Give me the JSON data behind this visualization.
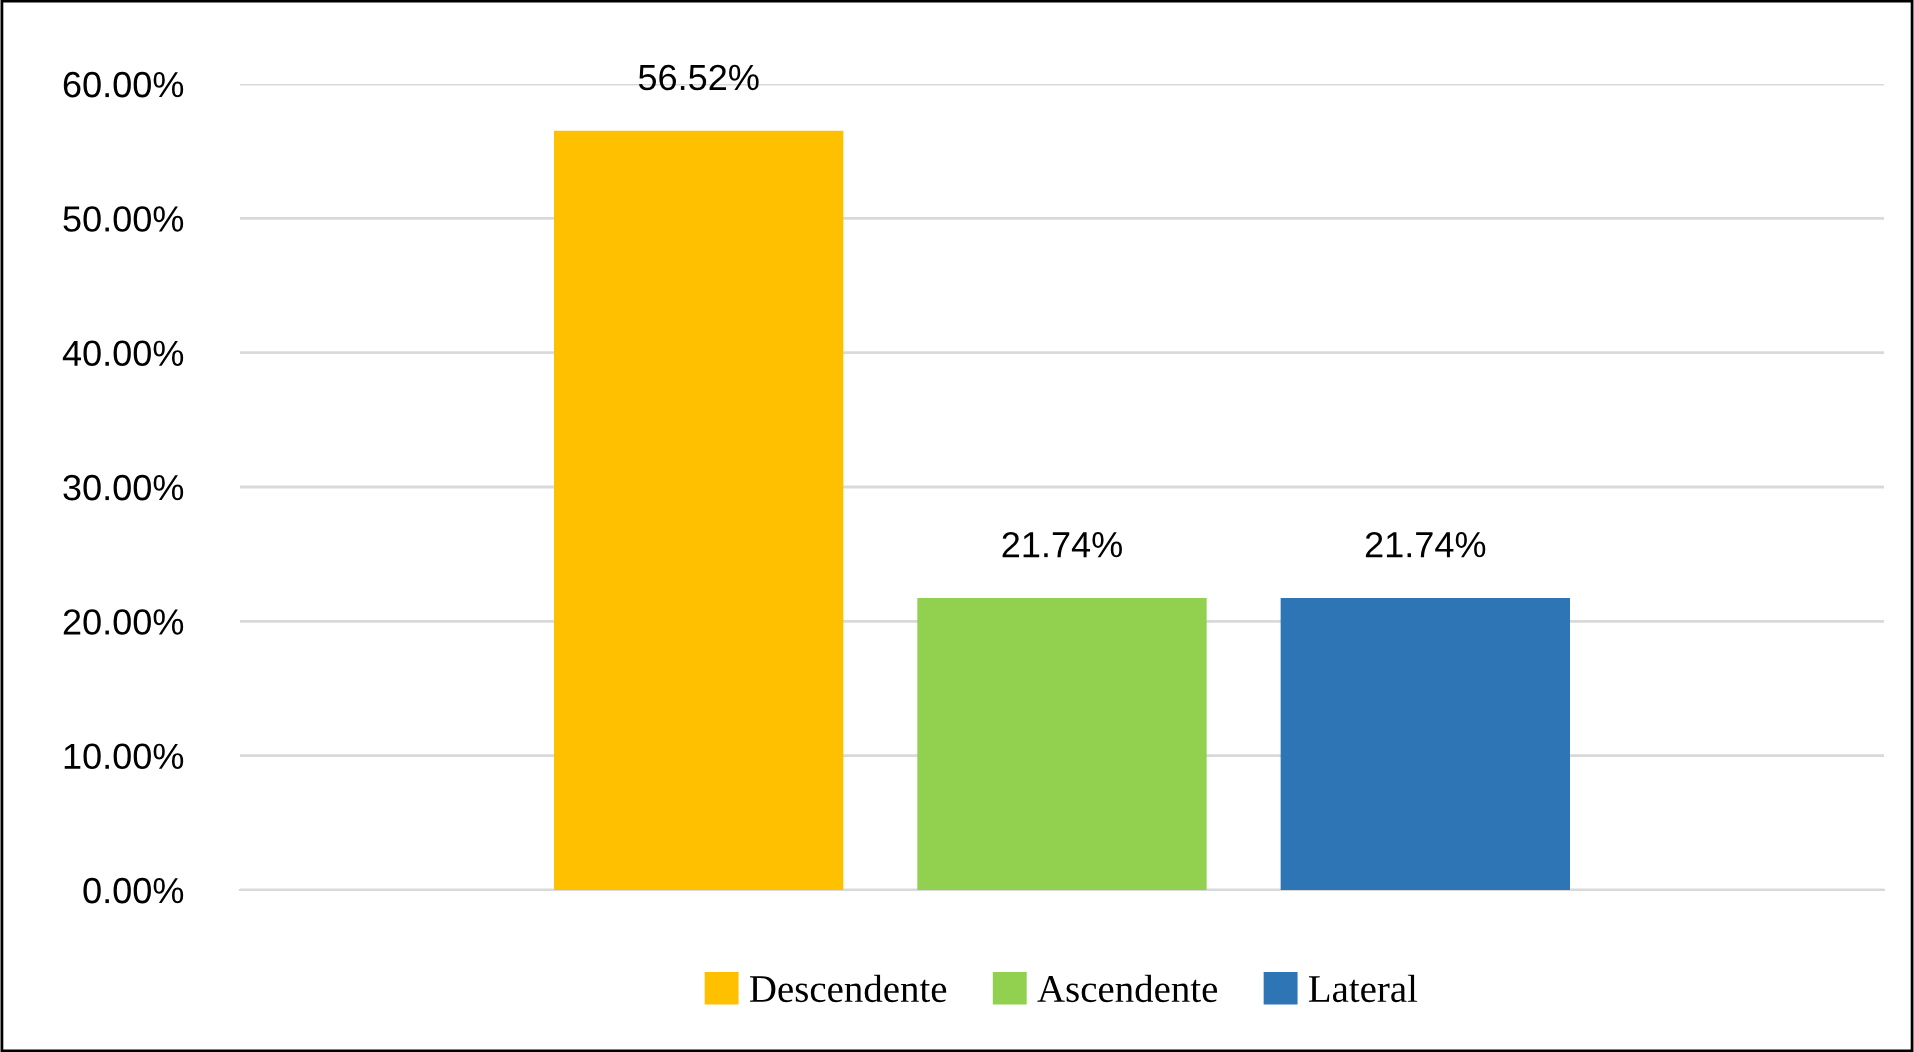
{
  "chart_data": {
    "type": "bar",
    "categories": [
      null
    ],
    "series": [
      {
        "name": "Descendente",
        "color": "#ffc000",
        "values": [
          56.52
        ],
        "value_labels": [
          "56.52%"
        ]
      },
      {
        "name": "Ascendente",
        "color": "#92d050",
        "values": [
          21.74
        ],
        "value_labels": [
          "21.74%"
        ]
      },
      {
        "name": "Lateral",
        "color": "#2e75b6",
        "values": [
          21.74
        ],
        "value_labels": [
          "21.74%"
        ]
      }
    ],
    "ylim": [
      0,
      60
    ],
    "yticks": [
      {
        "value": 0,
        "label": "0.00%"
      },
      {
        "value": 10,
        "label": "10.00%"
      },
      {
        "value": 20,
        "label": "20.00%"
      },
      {
        "value": 30,
        "label": "30.00%"
      },
      {
        "value": 40,
        "label": "40.00%"
      },
      {
        "value": 50,
        "label": "50.00%"
      },
      {
        "value": 60,
        "label": "60.00%"
      }
    ],
    "grid": "y",
    "legend": "bottom"
  }
}
